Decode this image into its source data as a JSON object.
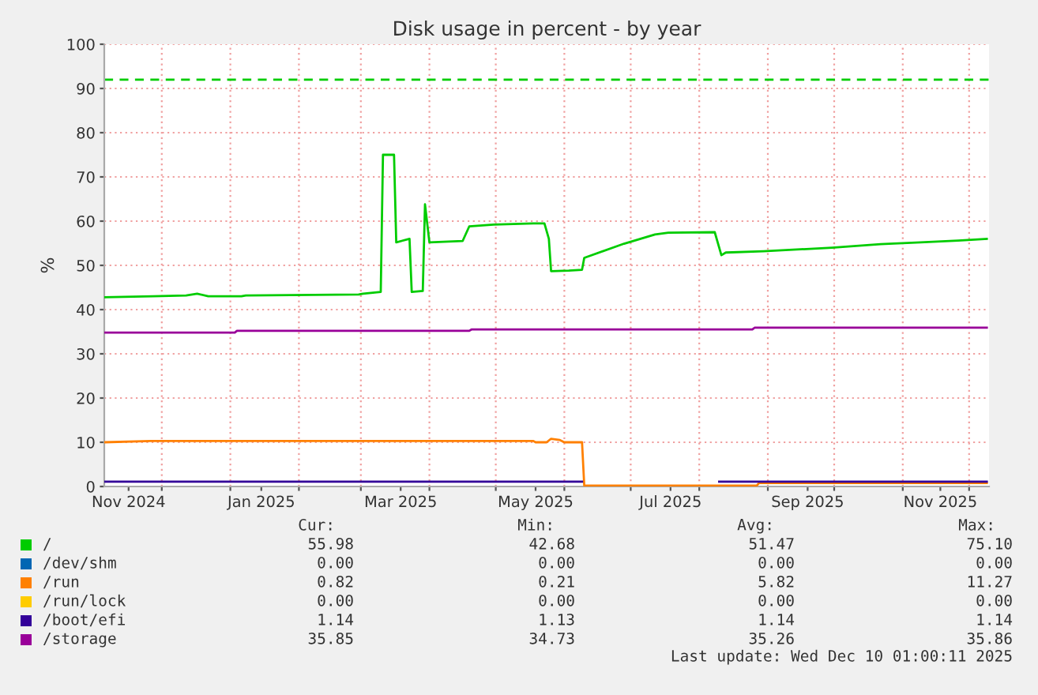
{
  "chart_data": {
    "type": "line",
    "title": "Disk usage in percent - by year",
    "ylabel": "%",
    "xlim": [
      "2024-11-05",
      "2025-12-10"
    ],
    "ylim": [
      0,
      100
    ],
    "xticks": [
      {
        "value": "2024-11-16",
        "label": "Nov 2024"
      },
      {
        "value": "2024-12-01",
        "label": null
      },
      {
        "value": "2025-01-01",
        "label": null
      },
      {
        "value": "2025-01-15",
        "label": "Jan 2025"
      },
      {
        "value": "2025-02-01",
        "label": null
      },
      {
        "value": "2025-03-01",
        "label": null
      },
      {
        "value": "2025-03-19",
        "label": "Mar 2025"
      },
      {
        "value": "2025-04-01",
        "label": null
      },
      {
        "value": "2025-05-01",
        "label": null
      },
      {
        "value": "2025-05-19",
        "label": "May 2025"
      },
      {
        "value": "2025-06-01",
        "label": null
      },
      {
        "value": "2025-07-01",
        "label": null
      },
      {
        "value": "2025-07-19",
        "label": "Jul 2025"
      },
      {
        "value": "2025-08-01",
        "label": null
      },
      {
        "value": "2025-09-01",
        "label": null
      },
      {
        "value": "2025-09-19",
        "label": "Sep 2025"
      },
      {
        "value": "2025-10-01",
        "label": null
      },
      {
        "value": "2025-11-01",
        "label": null
      },
      {
        "value": "2025-11-18",
        "label": "Nov 2025"
      },
      {
        "value": "2025-12-01",
        "label": null
      }
    ],
    "yticks": [
      0,
      10,
      20,
      30,
      40,
      50,
      60,
      70,
      80,
      90,
      100
    ],
    "grid": true,
    "legend": "bottom",
    "marker": "none",
    "line_style": "solid",
    "ref_lines": [
      {
        "axis": "y",
        "value": 92,
        "color": "#00cc00",
        "line_style": "dashed"
      }
    ],
    "series": [
      {
        "name": "/",
        "color": "#00cc00",
        "x": [
          "2024-11-05",
          "2024-11-27",
          "2024-12-12",
          "2024-12-17",
          "2024-12-22",
          "2025-01-06",
          "2025-01-08",
          "2025-02-28",
          "2025-03-02",
          "2025-03-10",
          "2025-03-11",
          "2025-03-16",
          "2025-03-17",
          "2025-03-23",
          "2025-03-24",
          "2025-03-29",
          "2025-03-30",
          "2025-04-01",
          "2025-04-16",
          "2025-04-19",
          "2025-04-30",
          "2025-05-18",
          "2025-05-23",
          "2025-05-25",
          "2025-05-26",
          "2025-06-03",
          "2025-06-09",
          "2025-06-10",
          "2025-06-28",
          "2025-07-12",
          "2025-07-18",
          "2025-08-08",
          "2025-08-11",
          "2025-08-13",
          "2025-08-30",
          "2025-09-30",
          "2025-10-22",
          "2025-11-09",
          "2025-11-26",
          "2025-12-09"
        ],
        "values": [
          42.8,
          43.0,
          43.2,
          43.6,
          43.0,
          43.0,
          43.2,
          43.4,
          43.6,
          44.0,
          75.0,
          75.0,
          55.2,
          56.0,
          44.0,
          44.2,
          63.8,
          55.2,
          55.5,
          58.8,
          59.2,
          59.5,
          59.5,
          56.0,
          48.7,
          48.8,
          49.0,
          51.7,
          54.9,
          57.0,
          57.4,
          57.5,
          52.3,
          52.9,
          53.2,
          54.0,
          54.8,
          55.2,
          55.6,
          56.0
        ]
      },
      {
        "name": "/dev/shm",
        "color": "#0066b3"
      },
      {
        "name": "/run",
        "color": "#ff8000",
        "x": [
          "2024-11-05",
          "2024-11-26",
          "2025-05-18",
          "2025-05-19",
          "2025-05-24",
          "2025-05-26",
          "2025-05-30",
          "2025-06-01",
          "2025-06-09",
          "2025-06-10",
          "2025-08-27",
          "2025-08-28",
          "2025-12-09"
        ],
        "values": [
          10.0,
          10.3,
          10.3,
          10.0,
          10.0,
          10.8,
          10.5,
          10.0,
          10.0,
          0.2,
          0.2,
          0.8,
          0.8
        ]
      },
      {
        "name": "/run/lock",
        "color": "#ffcc00"
      },
      {
        "name": "/boot/efi",
        "color": "#330099",
        "x": [
          "2024-11-05",
          "2025-06-09",
          "2025-06-10",
          "2025-08-10",
          "2025-12-09"
        ],
        "values": [
          1.1,
          1.1,
          null,
          1.1,
          1.1
        ]
      },
      {
        "name": "/storage",
        "color": "#990099",
        "x": [
          "2024-11-05",
          "2025-01-03",
          "2025-01-04",
          "2025-04-19",
          "2025-04-20",
          "2025-08-25",
          "2025-08-26",
          "2025-12-09"
        ],
        "values": [
          34.8,
          34.8,
          35.2,
          35.2,
          35.5,
          35.5,
          35.9,
          35.9
        ]
      }
    ],
    "annotations": [
      "Cur:",
      "Min:",
      "Avg:",
      "Max:",
      "55.98",
      "42.68",
      "51.47",
      "75.10",
      "0.00",
      "0.00",
      "0.00",
      "0.00",
      "0.82",
      "0.21",
      "5.82",
      "11.27",
      "0.00",
      "0.00",
      "0.00",
      "0.00",
      "1.14",
      "1.13",
      "1.14",
      "1.14",
      "35.85",
      "34.73",
      "35.26",
      "35.86",
      "Last update: Wed Dec 10 01:00:11 2025"
    ]
  }
}
